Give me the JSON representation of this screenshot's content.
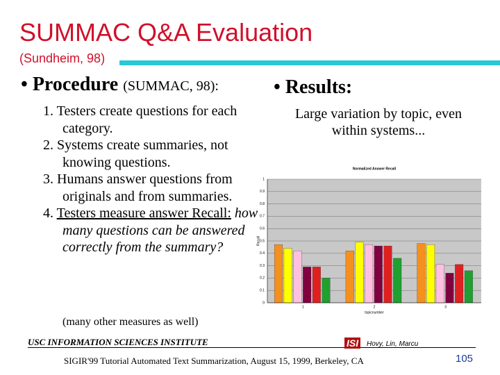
{
  "title": "SUMMAC Q&A Evaluation",
  "subtitle": "(Sundheim, 98)",
  "procedure": {
    "heading": "Procedure",
    "source": "(SUMMAC, 98):",
    "items": [
      {
        "text": "1. Testers create questions for each category."
      },
      {
        "text": "2. Systems create summaries, not knowing questions."
      },
      {
        "text": "3. Humans answer questions from originals and from summaries."
      },
      {
        "number": "4.",
        "underlined": "Testers measure answer Recall:",
        "italic": "how many questions can be answered correctly from the summary?"
      }
    ],
    "note": "(many other measures as well)"
  },
  "results": {
    "heading": "Results:",
    "text": "Large variation by topic, even within systems..."
  },
  "footer": {
    "institute": "USC INFORMATION SCIENCES INSTITUTE",
    "logo": "ISI",
    "authors": "Hovy, Lin, Marcu",
    "text": "SIGIR'99 Tutorial Automated Text Summarization, August 15, 1999, Berkeley, CA",
    "page": "105"
  },
  "chart_data": {
    "type": "bar",
    "title": "Normalized Answer Recall",
    "x_label": "topicnumber",
    "y_label": "Recall",
    "categories": [
      "1",
      "2",
      "3"
    ],
    "series": [
      {
        "color": "#f5901e",
        "values": [
          0.47,
          0.42,
          0.48
        ]
      },
      {
        "color": "#ffff00",
        "values": [
          0.44,
          0.49,
          0.47
        ]
      },
      {
        "color": "#ffc0e0",
        "values": [
          0.42,
          0.47,
          0.31
        ]
      },
      {
        "color": "#800040",
        "values": [
          0.29,
          0.46,
          0.24
        ]
      },
      {
        "color": "#e02020",
        "values": [
          0.29,
          0.46,
          0.31
        ]
      },
      {
        "color": "#20a030",
        "values": [
          0.2,
          0.36,
          0.26
        ]
      }
    ],
    "ylim": [
      0,
      1
    ],
    "yticks": [
      0,
      0.1,
      0.2,
      0.3,
      0.4,
      0.5,
      0.6,
      0.7,
      0.8,
      0.9,
      1
    ],
    "grid": true,
    "background": "#c8c8c8"
  }
}
